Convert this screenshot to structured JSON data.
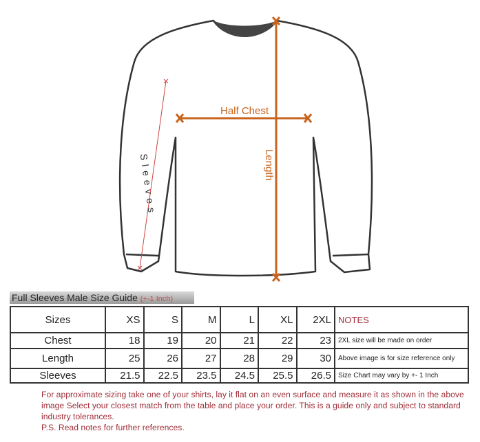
{
  "diagram": {
    "half_chest": "Half Chest",
    "length": "Length",
    "sleeves": "Sleeves",
    "accent_color": "#c8641e",
    "sleeve_color": "#d04040"
  },
  "guide": {
    "title": "Full Sleeves Male Size Guide",
    "tolerance": "(+-1 Inch)"
  },
  "table": {
    "header": [
      "Sizes",
      "XS",
      "S",
      "M",
      "L",
      "XL",
      "2XL",
      "NOTES"
    ],
    "rows": [
      {
        "label": "Chest",
        "values": [
          "18",
          "19",
          "20",
          "21",
          "22",
          "23"
        ],
        "note": "2XL size will be made on order"
      },
      {
        "label": "Length",
        "values": [
          "25",
          "26",
          "27",
          "28",
          "29",
          "30"
        ],
        "note": "Above image is for size reference only"
      },
      {
        "label": "Sleeves",
        "values": [
          "21.5",
          "22.5",
          "23.5",
          "24.5",
          "25.5",
          "26.5"
        ],
        "note": "Size Chart may vary by +- 1 Inch"
      }
    ]
  },
  "footer": {
    "line1": "For approximate sizing take one of your shirts, lay it flat on an even surface and measure it as shown in the above image Select your closest match from the table and place your order. This is a guide only and subject to standard industry tolerances.",
    "line2": "P.S. Read notes for further references."
  }
}
